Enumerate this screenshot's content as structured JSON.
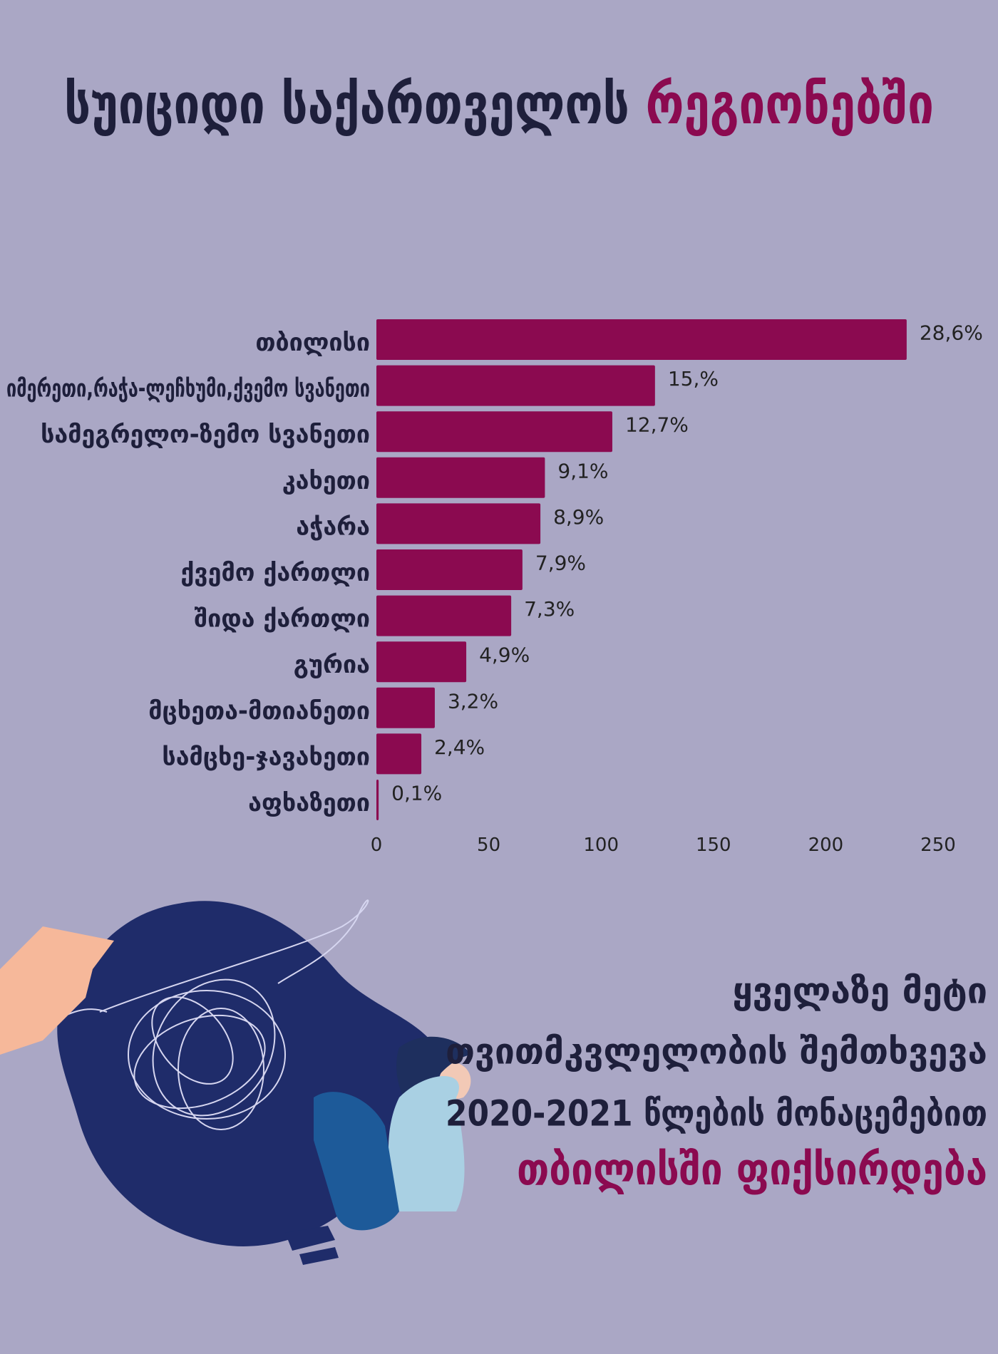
{
  "header": {
    "title": "სუიციდი საქართველოს",
    "title_highlight": "რეგიონებში"
  },
  "chart_data": {
    "type": "bar",
    "orientation": "horizontal",
    "categories": [
      "თბილისი",
      "იმერეთი,რაჭა-ლეჩხუმი,ქვემო სვანეთი",
      "სამეგრელო-ზემო სვანეთი",
      "კახეთი",
      "აჭარა",
      "ქვემო ქართლი",
      "შიდა ქართლი",
      "გურია",
      "მცხეთა-მთიანეთი",
      "სამცხე-ჯავახეთი",
      "აფხაზეთი"
    ],
    "values": [
      236,
      124,
      105,
      75,
      73,
      65,
      60,
      40,
      26,
      20,
      1
    ],
    "percent_labels": [
      "28,6%",
      "15,%",
      "12,7%",
      "9,1%",
      "8,9%",
      "7,9%",
      "7,3%",
      "4,9%",
      "3,2%",
      "2,4%",
      "0,1%"
    ],
    "color": "#8b0a50",
    "xlim": [
      0,
      250
    ],
    "xticks": [
      0,
      50,
      100,
      150,
      200,
      250
    ],
    "grid": false
  },
  "footer": {
    "lines": [
      "ყველაზე მეტი",
      "თვითმკვლელობის შემთხვევა",
      "2020-2021 წლების მონაცემებით"
    ],
    "highlight": "თბილისში ფიქსირდება"
  }
}
